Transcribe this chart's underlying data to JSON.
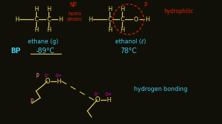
{
  "bg_color": "#111008",
  "ethane_label": "ethane (g)",
  "ethanol_label": "ethanol (ℓ)",
  "bp_label": "BP",
  "ethane_bp": "-89°C",
  "ethanol_bp": "78°C",
  "hydrophobic_label": "hydro\nphobic",
  "hydrophilic_label": "hydrophilic",
  "hbond_label": "hydrogen bonding",
  "yellow": "#E8D060",
  "cyan": "#40C8E8",
  "red": "#DD2200",
  "magenta": "#DD00BB",
  "pink": "#FF88AA",
  "dashed_red": "#CC1100"
}
